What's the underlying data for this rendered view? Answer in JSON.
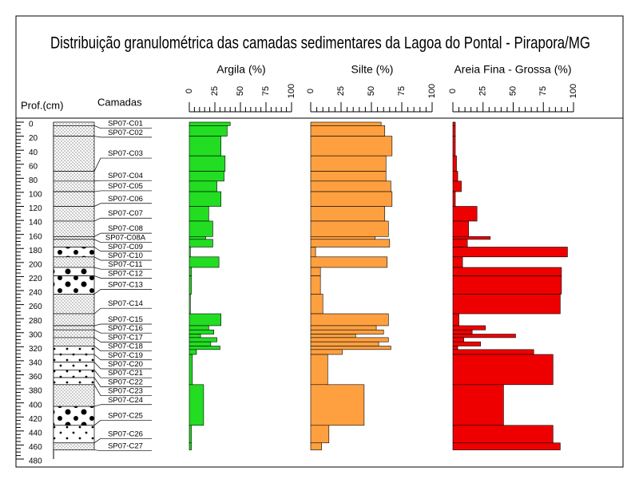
{
  "chart_data": {
    "type": "bar",
    "title": "Distribuição granulométrica das camadas sedimentares da Lagoa do Pontal - Pirapora/MG",
    "depth_label": "Prof.(cm)",
    "layers_label": "Camadas",
    "ylim": [
      0,
      480
    ],
    "yticks": [
      0,
      20,
      40,
      60,
      80,
      100,
      120,
      140,
      160,
      180,
      200,
      220,
      240,
      260,
      280,
      300,
      320,
      340,
      360,
      380,
      400,
      420,
      440,
      460,
      480
    ],
    "layers": [
      {
        "name": "SP07-C01",
        "top": 0,
        "base": 5
      },
      {
        "name": "SP07-C02",
        "top": 5,
        "base": 20
      },
      {
        "name": "SP07-C03",
        "top": 20,
        "base": 70
      },
      {
        "name": "SP07-C04",
        "top": 70,
        "base": 84
      },
      {
        "name": "SP07-C05",
        "top": 84,
        "base": 99
      },
      {
        "name": "SP07-C06",
        "top": 99,
        "base": 120
      },
      {
        "name": "SP07-C07",
        "top": 120,
        "base": 141
      },
      {
        "name": "SP07-C08",
        "top": 141,
        "base": 163
      },
      {
        "name": "SP07-C08A",
        "top": 163,
        "base": 167
      },
      {
        "name": "SP07-C09",
        "top": 167,
        "base": 178
      },
      {
        "name": "SP07-C10",
        "top": 178,
        "base": 192
      },
      {
        "name": "SP07-C11",
        "top": 192,
        "base": 207
      },
      {
        "name": "SP07-C12",
        "top": 207,
        "base": 219
      },
      {
        "name": "SP07-C13",
        "top": 219,
        "base": 245
      },
      {
        "name": "SP07-C14",
        "top": 245,
        "base": 273
      },
      {
        "name": "SP07-C15",
        "top": 273,
        "base": 290
      },
      {
        "name": "SP07-C16",
        "top": 290,
        "base": 296
      },
      {
        "name": "SP07-C17",
        "top": 296,
        "base": 307
      },
      {
        "name": "SP07-C18",
        "top": 307,
        "base": 319
      },
      {
        "name": "SP07-C19",
        "top": 319,
        "base": 331
      },
      {
        "name": "SP07-C20",
        "top": 331,
        "base": 342
      },
      {
        "name": "SP07-C21",
        "top": 342,
        "base": 353
      },
      {
        "name": "SP07-C22",
        "top": 353,
        "base": 364
      },
      {
        "name": "SP07-C23",
        "top": 364,
        "base": 374
      },
      {
        "name": "SP07-C24",
        "top": 374,
        "base": 405
      },
      {
        "name": "SP07-C25",
        "top": 405,
        "base": 432
      },
      {
        "name": "SP07-C26",
        "top": 432,
        "base": 457
      },
      {
        "name": "SP07-C27",
        "top": 457,
        "base": 467
      }
    ],
    "depth_top": [
      0,
      5,
      20,
      48,
      70,
      84,
      99,
      120,
      141,
      163,
      167,
      178,
      192,
      207,
      219,
      245,
      273,
      290,
      296,
      302,
      307,
      313,
      319,
      324,
      331,
      374,
      432,
      457
    ],
    "depth_base": [
      5,
      20,
      48,
      70,
      84,
      99,
      120,
      141,
      163,
      167,
      178,
      192,
      207,
      219,
      245,
      273,
      290,
      296,
      302,
      307,
      313,
      319,
      324,
      331,
      374,
      432,
      457,
      467
    ],
    "series": [
      {
        "name": "Argila (%)",
        "color": "#22dd22",
        "xlim": [
          0,
          100
        ],
        "xticks": [
          0,
          25,
          50,
          75,
          100
        ],
        "values": [
          40,
          37,
          31,
          35,
          34,
          27,
          31,
          19,
          23,
          16,
          23,
          1,
          29,
          2,
          2,
          1,
          31,
          19,
          24,
          11,
          27,
          21,
          30,
          7,
          3,
          14,
          2,
          2
        ]
      },
      {
        "name": "Silte (%)",
        "color": "#ffa040",
        "xlim": [
          0,
          100
        ],
        "xticks": [
          0,
          25,
          50,
          75,
          100
        ],
        "values": [
          58,
          61,
          67,
          62,
          62,
          66,
          67,
          61,
          64,
          53,
          65,
          4,
          63,
          8,
          8,
          10,
          64,
          54,
          60,
          37,
          64,
          56,
          66,
          26,
          14,
          44,
          15,
          9
        ]
      },
      {
        "name": "Areia Fina - Grossa (%)",
        "color": "#ee0000",
        "xlim": [
          0,
          100
        ],
        "xticks": [
          0,
          25,
          50,
          75,
          100
        ],
        "values": [
          2,
          2,
          2,
          3,
          4,
          7,
          2,
          20,
          13,
          31,
          12,
          95,
          8,
          90,
          90,
          89,
          5,
          27,
          16,
          52,
          9,
          23,
          4,
          67,
          83,
          42,
          83,
          89
        ]
      }
    ]
  }
}
